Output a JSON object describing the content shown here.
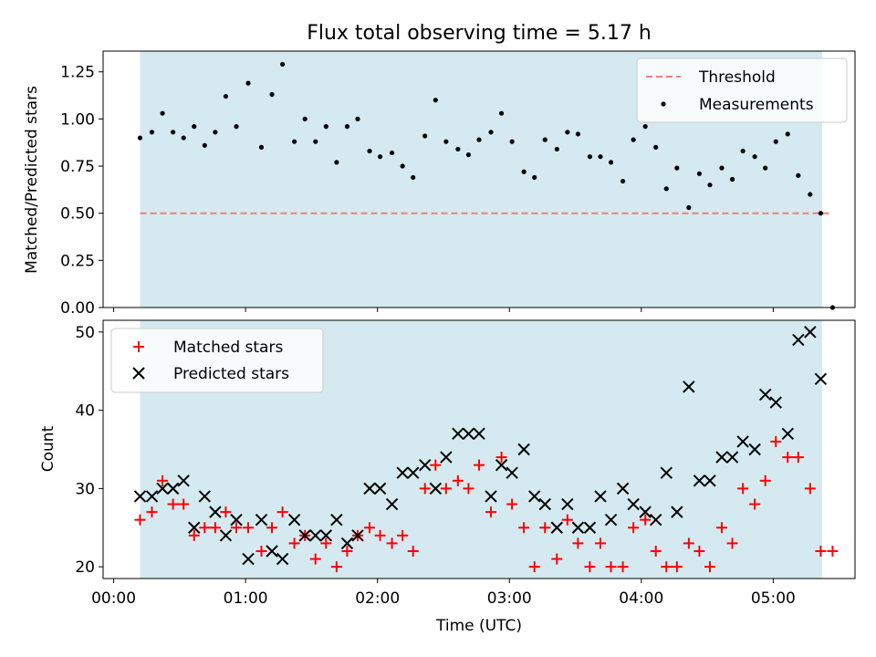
{
  "chart_data": [
    {
      "type": "scatter",
      "title": "Flux total observing time = 5.17 h",
      "xlabel": "",
      "ylabel": "Matched/Predicted stars",
      "ylim": [
        0,
        1.36
      ],
      "yticks": [
        "0.00",
        "0.25",
        "0.50",
        "0.75",
        "1.00",
        "1.25"
      ],
      "yticks_values": [
        0,
        0.25,
        0.5,
        0.75,
        1.0,
        1.25
      ],
      "xlim_hours": [
        -0.08,
        5.62
      ],
      "shaded_span_hours": [
        0.2,
        5.37
      ],
      "shade_color": "#d4eaf0",
      "legend_position": "upper right",
      "threshold": {
        "name": "Threshold",
        "value": 0.5,
        "x_start_hours": 0.2,
        "x_end_hours": 5.45,
        "color": "#ef7e7e"
      },
      "measurements": {
        "name": "Measurements",
        "color": "#000000",
        "x_hours": [
          0.2,
          0.29,
          0.37,
          0.45,
          0.53,
          0.61,
          0.69,
          0.77,
          0.85,
          0.93,
          1.02,
          1.12,
          1.2,
          1.28,
          1.37,
          1.45,
          1.53,
          1.61,
          1.69,
          1.77,
          1.85,
          1.94,
          2.02,
          2.11,
          2.19,
          2.27,
          2.36,
          2.44,
          2.52,
          2.61,
          2.69,
          2.77,
          2.86,
          2.94,
          3.02,
          3.11,
          3.19,
          3.27,
          3.36,
          3.44,
          3.52,
          3.61,
          3.69,
          3.77,
          3.86,
          3.94,
          4.03,
          4.11,
          4.19,
          4.27,
          4.36,
          4.44,
          4.52,
          4.61,
          4.69,
          4.77,
          4.86,
          4.94,
          5.02,
          5.11,
          5.19,
          5.28,
          5.36,
          5.45
        ],
        "y": [
          0.9,
          0.93,
          1.03,
          0.93,
          0.9,
          0.96,
          0.86,
          0.93,
          1.12,
          0.96,
          1.19,
          0.85,
          1.13,
          1.29,
          0.88,
          1.0,
          0.88,
          0.96,
          0.77,
          0.96,
          1.0,
          0.83,
          0.8,
          0.82,
          0.75,
          0.69,
          0.91,
          1.1,
          0.88,
          0.84,
          0.81,
          0.89,
          0.93,
          1.03,
          0.88,
          0.72,
          0.69,
          0.89,
          0.84,
          0.93,
          0.92,
          0.8,
          0.8,
          0.77,
          0.67,
          0.89,
          0.96,
          0.85,
          0.63,
          0.74,
          0.53,
          0.71,
          0.65,
          0.74,
          0.68,
          0.83,
          0.8,
          0.74,
          0.88,
          0.92,
          0.7,
          0.6,
          0.5,
          0.0
        ]
      },
      "legend": [
        "Threshold",
        "Measurements"
      ]
    },
    {
      "type": "scatter",
      "title": "",
      "xlabel": "Time (UTC)",
      "ylabel": "Count",
      "ylim": [
        18.5,
        51.5
      ],
      "yticks": [
        "20",
        "30",
        "40",
        "50"
      ],
      "yticks_values": [
        20,
        30,
        40,
        50
      ],
      "xticks": [
        "00:00",
        "01:00",
        "02:00",
        "03:00",
        "04:00",
        "05:00"
      ],
      "xticks_hours": [
        0,
        1,
        2,
        3,
        4,
        5
      ],
      "xlim_hours": [
        -0.08,
        5.62
      ],
      "shaded_span_hours": [
        0.2,
        5.37
      ],
      "legend_position": "upper left",
      "series": [
        {
          "name": "Matched stars",
          "marker": "+",
          "color": "#ff0000",
          "x_hours": [
            0.2,
            0.29,
            0.37,
            0.45,
            0.53,
            0.61,
            0.69,
            0.77,
            0.85,
            0.93,
            1.02,
            1.12,
            1.2,
            1.28,
            1.37,
            1.45,
            1.53,
            1.61,
            1.69,
            1.77,
            1.85,
            1.94,
            2.02,
            2.11,
            2.19,
            2.27,
            2.36,
            2.44,
            2.52,
            2.61,
            2.69,
            2.77,
            2.86,
            2.94,
            3.02,
            3.11,
            3.19,
            3.27,
            3.36,
            3.44,
            3.52,
            3.61,
            3.69,
            3.77,
            3.86,
            3.94,
            4.03,
            4.11,
            4.19,
            4.27,
            4.36,
            4.44,
            4.52,
            4.61,
            4.69,
            4.77,
            4.86,
            4.94,
            5.02,
            5.11,
            5.19,
            5.28,
            5.36,
            5.45
          ],
          "y": [
            26,
            27,
            31,
            28,
            28,
            24,
            25,
            25,
            27,
            25,
            25,
            22,
            25,
            27,
            23,
            24,
            21,
            23,
            20,
            22,
            24,
            25,
            24,
            23,
            24,
            22,
            30,
            33,
            30,
            31,
            30,
            33,
            27,
            34,
            28,
            25,
            20,
            25,
            21,
            26,
            23,
            20,
            23,
            20,
            20,
            25,
            26,
            22,
            20,
            20,
            23,
            22,
            20,
            25,
            23,
            30,
            28,
            31,
            36,
            34,
            34,
            30,
            22,
            22
          ]
        },
        {
          "name": "Predicted stars",
          "marker": "x",
          "color": "#000000",
          "x_hours": [
            0.2,
            0.29,
            0.37,
            0.45,
            0.53,
            0.61,
            0.69,
            0.77,
            0.85,
            0.93,
            1.02,
            1.12,
            1.2,
            1.28,
            1.37,
            1.45,
            1.53,
            1.61,
            1.69,
            1.77,
            1.85,
            1.94,
            2.02,
            2.11,
            2.19,
            2.27,
            2.36,
            2.44,
            2.52,
            2.61,
            2.69,
            2.77,
            2.86,
            2.94,
            3.02,
            3.11,
            3.19,
            3.27,
            3.36,
            3.44,
            3.52,
            3.61,
            3.69,
            3.77,
            3.86,
            3.94,
            4.03,
            4.11,
            4.19,
            4.27,
            4.36,
            4.44,
            4.52,
            4.61,
            4.69,
            4.77,
            4.86,
            4.94,
            5.02,
            5.11,
            5.19,
            5.28,
            5.36
          ],
          "y": [
            29,
            29,
            30,
            30,
            31,
            25,
            29,
            27,
            24,
            26,
            21,
            26,
            22,
            21,
            26,
            24,
            24,
            24,
            26,
            23,
            24,
            30,
            30,
            28,
            32,
            32,
            33,
            30,
            34,
            37,
            37,
            37,
            29,
            33,
            32,
            35,
            29,
            28,
            25,
            28,
            25,
            25,
            29,
            26,
            30,
            28,
            27,
            26,
            32,
            27,
            43,
            31,
            31,
            34,
            34,
            36,
            35,
            42,
            41,
            37,
            49,
            50,
            44
          ]
        }
      ],
      "legend": [
        "Matched stars",
        "Predicted stars"
      ]
    }
  ]
}
